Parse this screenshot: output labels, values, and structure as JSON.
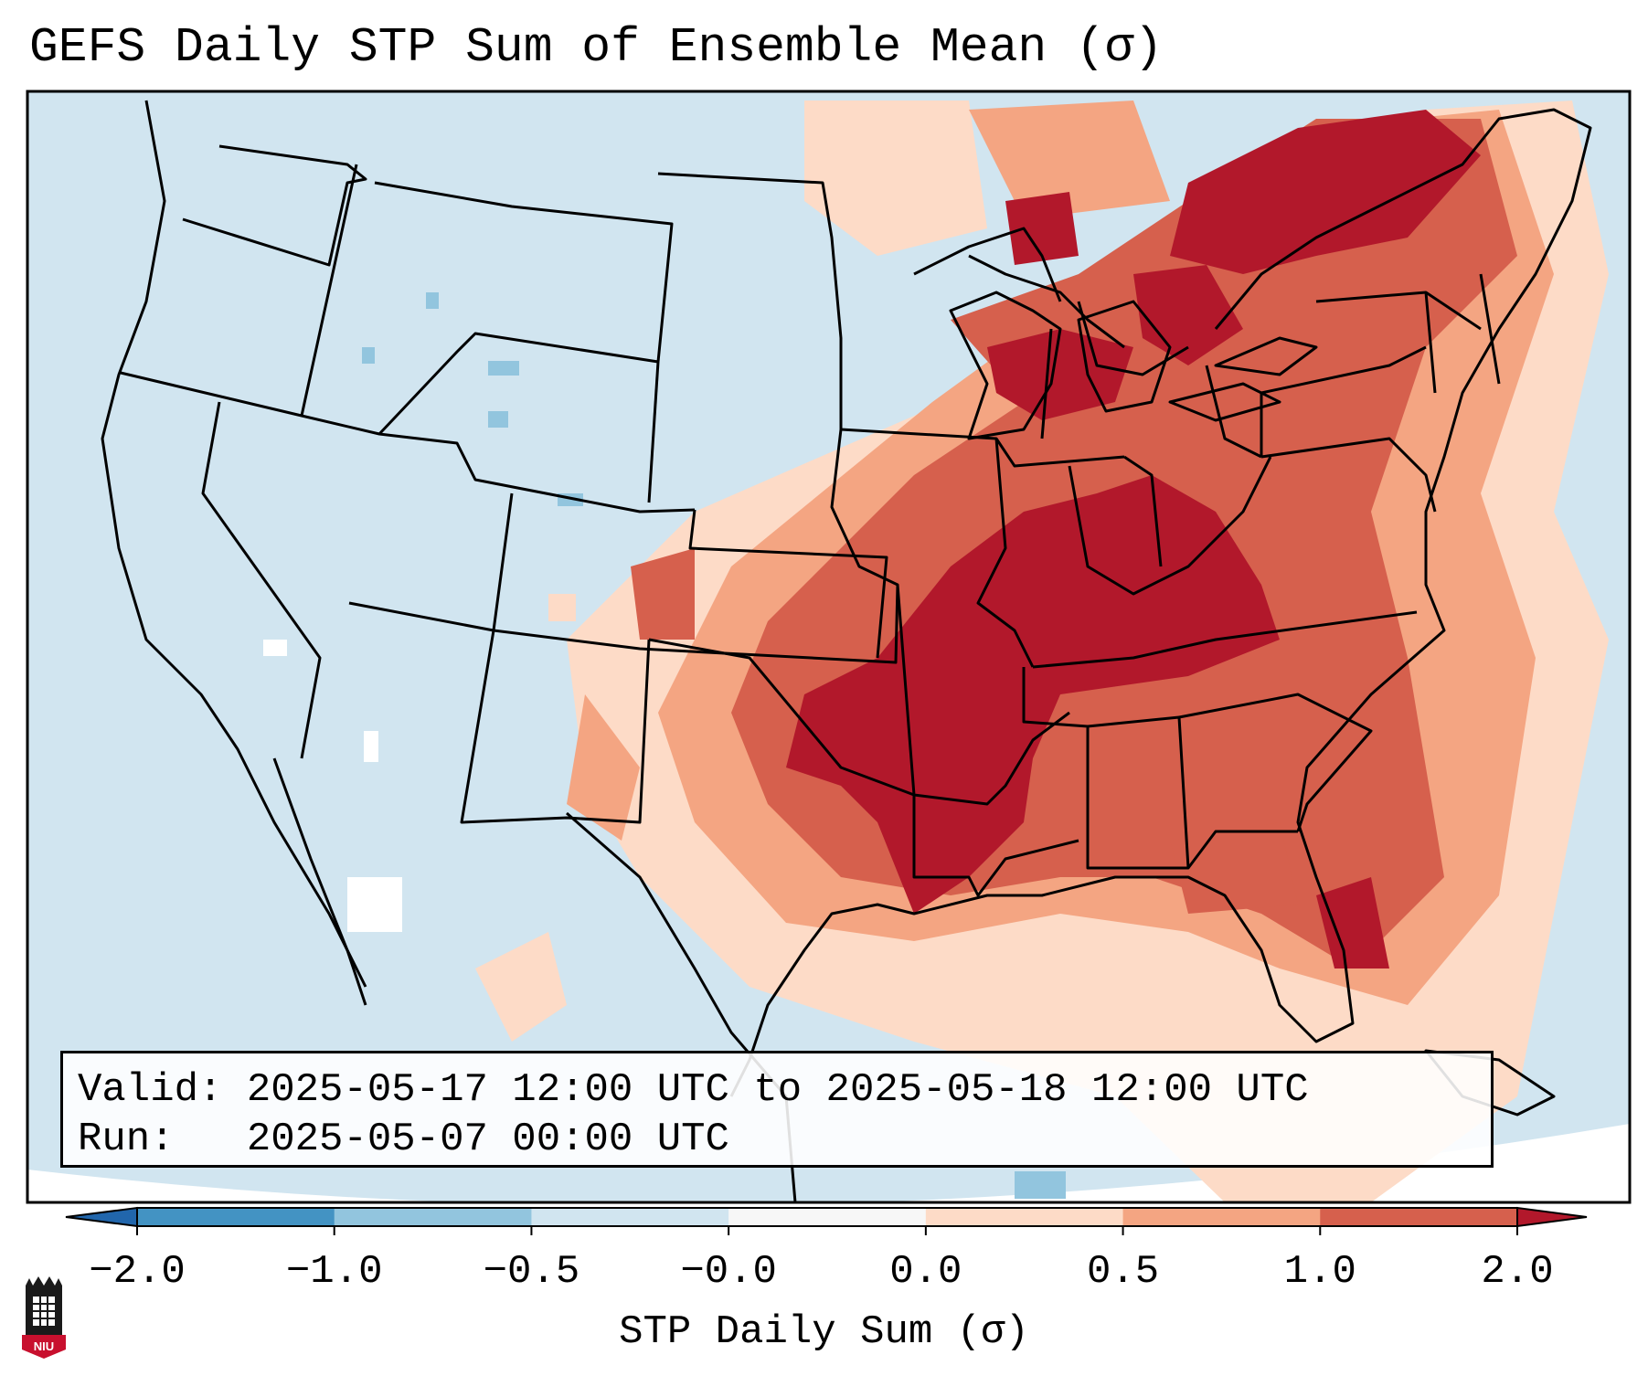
{
  "title": "GEFS Daily STP Sum of Ensemble Mean (σ)",
  "map": {
    "name": "Contiguous United States",
    "colors": {
      "ocean": "#d1e5f0",
      "low_neg": "#92c5de",
      "near_zero": "#f7f7f7",
      "low_pos": "#fddbc7",
      "mid_pos": "#f4a582",
      "high_pos": "#d6604d",
      "max_pos": "#b2182b",
      "borders": "#000000"
    },
    "anomaly_core": "Lower Mississippi and Tennessee Valleys",
    "anomaly_levels": [
      "low_pos",
      "mid_pos",
      "high_pos",
      "max_pos"
    ]
  },
  "info": {
    "valid_label": "Valid:",
    "valid_text": "2025-05-17 12:00 UTC to 2025-05-18 12:00 UTC",
    "run_label": "Run:",
    "run_text": "2025-05-07 00:00 UTC"
  },
  "colorbar": {
    "label": "STP Daily Sum (σ)",
    "ticks": [
      "−2.0",
      "−1.0",
      "−0.5",
      "−0.0",
      "0.0",
      "0.5",
      "1.0",
      "2.0"
    ],
    "colors": [
      "#4393c3",
      "#92c5de",
      "#d1e5f0",
      "#f7f7f7",
      "#fddbc7",
      "#f4a582",
      "#d6604d"
    ],
    "under_color": "#2166ac",
    "over_color": "#b2182b"
  },
  "logo": {
    "text": "NIU",
    "color": "#c8102e"
  }
}
